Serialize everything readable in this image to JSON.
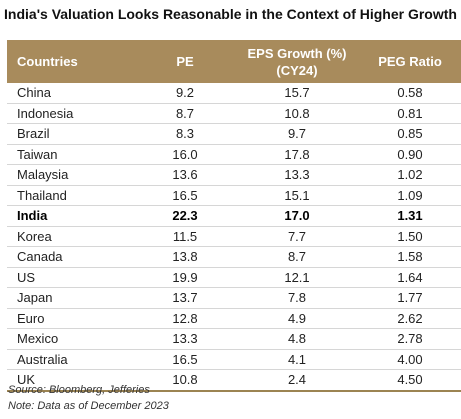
{
  "chart_data": {
    "type": "table",
    "title": "India's Valuation Looks Reasonable in the Context of Higher Growth",
    "columns": [
      "Countries",
      "PE",
      "EPS Growth (%) (CY24)",
      "PEG Ratio"
    ],
    "rows": [
      {
        "country": "China",
        "pe": "9.2",
        "eps": "15.7",
        "peg": "0.58"
      },
      {
        "country": "Indonesia",
        "pe": "8.7",
        "eps": "10.8",
        "peg": "0.81"
      },
      {
        "country": "Brazil",
        "pe": "8.3",
        "eps": "9.7",
        "peg": "0.85"
      },
      {
        "country": "Taiwan",
        "pe": "16.0",
        "eps": "17.8",
        "peg": "0.90"
      },
      {
        "country": "Malaysia",
        "pe": "13.6",
        "eps": "13.3",
        "peg": "1.02"
      },
      {
        "country": "Thailand",
        "pe": "16.5",
        "eps": "15.1",
        "peg": "1.09"
      },
      {
        "country": "India",
        "pe": "22.3",
        "eps": "17.0",
        "peg": "1.31",
        "highlight": true
      },
      {
        "country": "Korea",
        "pe": "11.5",
        "eps": "7.7",
        "peg": "1.50"
      },
      {
        "country": "Canada",
        "pe": "13.8",
        "eps": "8.7",
        "peg": "1.58"
      },
      {
        "country": "US",
        "pe": "19.9",
        "eps": "12.1",
        "peg": "1.64"
      },
      {
        "country": "Japan",
        "pe": "13.7",
        "eps": "7.8",
        "peg": "1.77"
      },
      {
        "country": "Euro",
        "pe": "12.8",
        "eps": "4.9",
        "peg": "2.62"
      },
      {
        "country": "Mexico",
        "pe": "13.3",
        "eps": "4.8",
        "peg": "2.78"
      },
      {
        "country": "Australia",
        "pe": "16.5",
        "eps": "4.1",
        "peg": "4.00"
      },
      {
        "country": "UK",
        "pe": "10.8",
        "eps": "2.4",
        "peg": "4.50"
      }
    ],
    "source": "Source: Bloomberg, Jefferies",
    "note": "Note: Data as of December 2023",
    "header_color": "#a88b5c"
  }
}
